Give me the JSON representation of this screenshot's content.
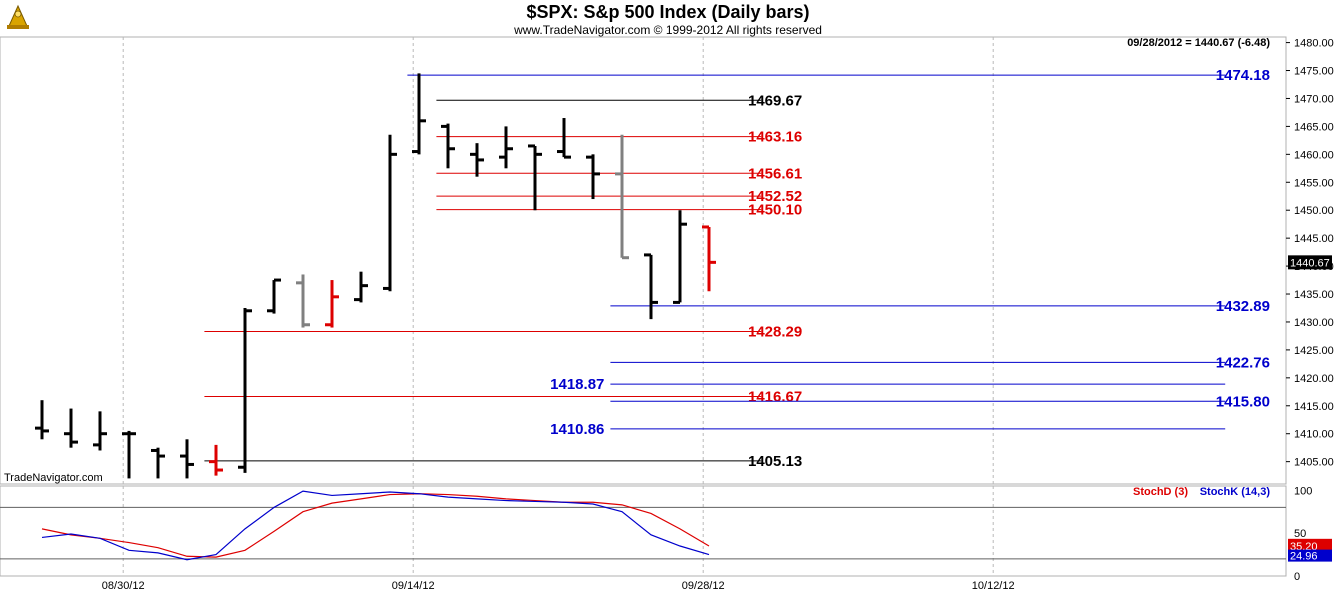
{
  "chart_data": [
    {
      "type": "ohlc",
      "title": "$SPX:  S&p 500 Index  (Daily bars)",
      "subtitle": "www.TradeNavigator.com © 1999-2012 All rights reserved",
      "watermark": "TradeNavigator.com",
      "last_bar_label": "09/28/2012 = 1440.67 (-6.48)",
      "last_price": "1440.67",
      "ylim": [
        1401,
        1481
      ],
      "y_ticks": [
        "1405.00",
        "1410.00",
        "1415.00",
        "1420.00",
        "1425.00",
        "1430.00",
        "1435.00",
        "1440.00",
        "1445.00",
        "1450.00",
        "1455.00",
        "1460.00",
        "1465.00",
        "1470.00",
        "1475.00",
        "1480.00"
      ],
      "x_ticks": [
        {
          "index": 2.8,
          "label": "08/30/12"
        },
        {
          "index": 12.8,
          "label": "09/14/12"
        },
        {
          "index": 22.8,
          "label": "09/28/12"
        },
        {
          "index": 32.8,
          "label": "10/12/12"
        }
      ],
      "colors": {
        "up": "#000000",
        "down": "#000000",
        "inside": "#808080",
        "last": "#dd0000",
        "red_level": "#dd0000",
        "blue_level": "#0000cc",
        "black_level": "#000000"
      },
      "bars": [
        {
          "o": 1411.0,
          "h": 1416.0,
          "l": 1409.0,
          "c": 1410.5,
          "color": "black"
        },
        {
          "o": 1410.0,
          "h": 1414.5,
          "l": 1407.5,
          "c": 1408.5,
          "color": "black"
        },
        {
          "o": 1408.0,
          "h": 1414.0,
          "l": 1407.0,
          "c": 1410.0,
          "color": "black"
        },
        {
          "o": 1410.0,
          "h": 1410.5,
          "l": 1402.0,
          "c": 1410.0,
          "color": "black"
        },
        {
          "o": 1407.0,
          "h": 1407.5,
          "l": 1402.0,
          "c": 1406.0,
          "color": "black"
        },
        {
          "o": 1406.0,
          "h": 1409.0,
          "l": 1402.0,
          "c": 1404.5,
          "color": "black"
        },
        {
          "o": 1405.0,
          "h": 1408.0,
          "l": 1402.5,
          "c": 1403.5,
          "color": "red"
        },
        {
          "o": 1404.0,
          "h": 1432.5,
          "l": 1403.0,
          "c": 1432.0,
          "color": "black"
        },
        {
          "o": 1432.0,
          "h": 1437.5,
          "l": 1431.5,
          "c": 1437.5,
          "color": "black"
        },
        {
          "o": 1437.0,
          "h": 1438.5,
          "l": 1429.0,
          "c": 1429.5,
          "color": "gray"
        },
        {
          "o": 1429.5,
          "h": 1437.5,
          "l": 1429.0,
          "c": 1434.5,
          "color": "red"
        },
        {
          "o": 1434.0,
          "h": 1439.0,
          "l": 1433.5,
          "c": 1436.5,
          "color": "black"
        },
        {
          "o": 1436.0,
          "h": 1463.5,
          "l": 1435.5,
          "c": 1460.0,
          "color": "black"
        },
        {
          "o": 1460.5,
          "h": 1474.5,
          "l": 1460.0,
          "c": 1466.0,
          "color": "black"
        },
        {
          "o": 1465.0,
          "h": 1465.5,
          "l": 1457.5,
          "c": 1461.0,
          "color": "black"
        },
        {
          "o": 1460.0,
          "h": 1462.0,
          "l": 1456.0,
          "c": 1459.0,
          "color": "black"
        },
        {
          "o": 1459.5,
          "h": 1465.0,
          "l": 1457.5,
          "c": 1461.0,
          "color": "black"
        },
        {
          "o": 1461.5,
          "h": 1461.5,
          "l": 1450.0,
          "c": 1460.0,
          "color": "black"
        },
        {
          "o": 1460.5,
          "h": 1466.5,
          "l": 1459.5,
          "c": 1459.5,
          "color": "black"
        },
        {
          "o": 1459.5,
          "h": 1460.0,
          "l": 1452.0,
          "c": 1456.5,
          "color": "black"
        },
        {
          "o": 1456.5,
          "h": 1463.5,
          "l": 1441.5,
          "c": 1441.5,
          "color": "gray"
        },
        {
          "o": 1442.0,
          "h": 1442.0,
          "l": 1430.5,
          "c": 1433.5,
          "color": "black"
        },
        {
          "o": 1433.5,
          "h": 1450.0,
          "l": 1433.5,
          "c": 1447.5,
          "color": "black"
        },
        {
          "o": 1447.0,
          "h": 1447.0,
          "l": 1435.5,
          "c": 1440.67,
          "color": "red"
        }
      ],
      "levels": [
        {
          "value": 1474.18,
          "label": "1474.18",
          "color": "blue",
          "x_start_index": 12.6,
          "x_end_index": 40.8,
          "label_side": "right"
        },
        {
          "value": 1469.67,
          "label": "1469.67",
          "color": "black",
          "x_start_index": 13.6,
          "x_end_index": 24.8,
          "label_side": "right_of_end"
        },
        {
          "value": 1463.16,
          "label": "1463.16",
          "color": "red",
          "x_start_index": 13.6,
          "x_end_index": 24.8,
          "label_side": "right_of_end"
        },
        {
          "value": 1456.61,
          "label": "1456.61",
          "color": "red",
          "x_start_index": 13.6,
          "x_end_index": 24.8,
          "label_side": "right_of_end"
        },
        {
          "value": 1452.52,
          "label": "1452.52",
          "color": "red",
          "x_start_index": 13.6,
          "x_end_index": 24.8,
          "label_side": "right_of_end"
        },
        {
          "value": 1450.1,
          "label": "1450.10",
          "color": "red",
          "x_start_index": 13.6,
          "x_end_index": 24.8,
          "label_side": "right_of_end"
        },
        {
          "value": 1432.89,
          "label": "1432.89",
          "color": "blue",
          "x_start_index": 19.6,
          "x_end_index": 40.8,
          "label_side": "right"
        },
        {
          "value": 1428.29,
          "label": "1428.29",
          "color": "red",
          "x_start_index": 5.6,
          "x_end_index": 24.8,
          "label_side": "right_of_end"
        },
        {
          "value": 1422.76,
          "label": "1422.76",
          "color": "blue",
          "x_start_index": 19.6,
          "x_end_index": 40.8,
          "label_side": "right"
        },
        {
          "value": 1418.87,
          "label": "1418.87",
          "color": "blue",
          "x_start_index": 19.6,
          "x_end_index": 40.8,
          "label_side": "left_of_start"
        },
        {
          "value": 1416.67,
          "label": "1416.67",
          "color": "red",
          "x_start_index": 5.6,
          "x_end_index": 24.8,
          "label_side": "right_of_end"
        },
        {
          "value": 1415.8,
          "label": "1415.80",
          "color": "blue",
          "x_start_index": 19.6,
          "x_end_index": 40.8,
          "label_side": "right"
        },
        {
          "value": 1410.86,
          "label": "1410.86",
          "color": "blue",
          "x_start_index": 19.6,
          "x_end_index": 40.8,
          "label_side": "left_of_start"
        },
        {
          "value": 1405.13,
          "label": "1405.13",
          "color": "black",
          "x_start_index": 5.6,
          "x_end_index": 24.8,
          "label_side": "right_of_end"
        }
      ]
    },
    {
      "type": "line",
      "ylim": [
        0,
        105
      ],
      "y_ticks": [
        "0",
        "50",
        "100"
      ],
      "ref_lines": [
        80,
        20
      ],
      "legend": [
        {
          "name": "StochD (3)",
          "color": "#dd0000"
        },
        {
          "name": "StochK (14,3)",
          "color": "#0000cc"
        }
      ],
      "last_values": {
        "stochD": "35.20",
        "stochK": "24.96"
      },
      "series": [
        {
          "name": "StochD (3)",
          "color": "#dd0000",
          "values": [
            55,
            48,
            44,
            39,
            33,
            23,
            22,
            30,
            52,
            75,
            85,
            90,
            95,
            96,
            95,
            93,
            90,
            88,
            86,
            86,
            83,
            73,
            55,
            35
          ]
        },
        {
          "name": "StochK (14,3)",
          "color": "#0000cc",
          "values": [
            45,
            49,
            44,
            30,
            27,
            19,
            25,
            55,
            80,
            99,
            94,
            96,
            98,
            96,
            92,
            90,
            88,
            87,
            86,
            84,
            75,
            48,
            35,
            25
          ]
        }
      ]
    }
  ]
}
